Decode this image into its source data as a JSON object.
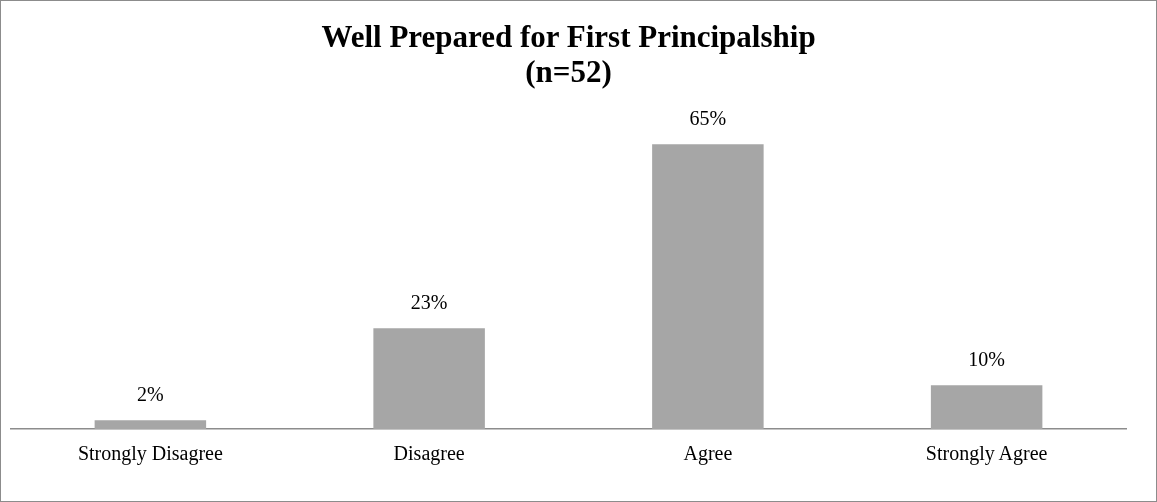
{
  "chart_data": {
    "type": "bar",
    "title": "Well Prepared for First Principalship\n(n=52)",
    "categories": [
      "Strongly Disagree",
      "Disagree",
      "Agree",
      "Strongly Agree"
    ],
    "values": [
      2,
      23,
      65,
      10
    ],
    "value_labels": [
      "2%",
      "23%",
      "65%",
      "10%"
    ],
    "color": "#a6a6a6",
    "grid": false,
    "legend": false
  }
}
